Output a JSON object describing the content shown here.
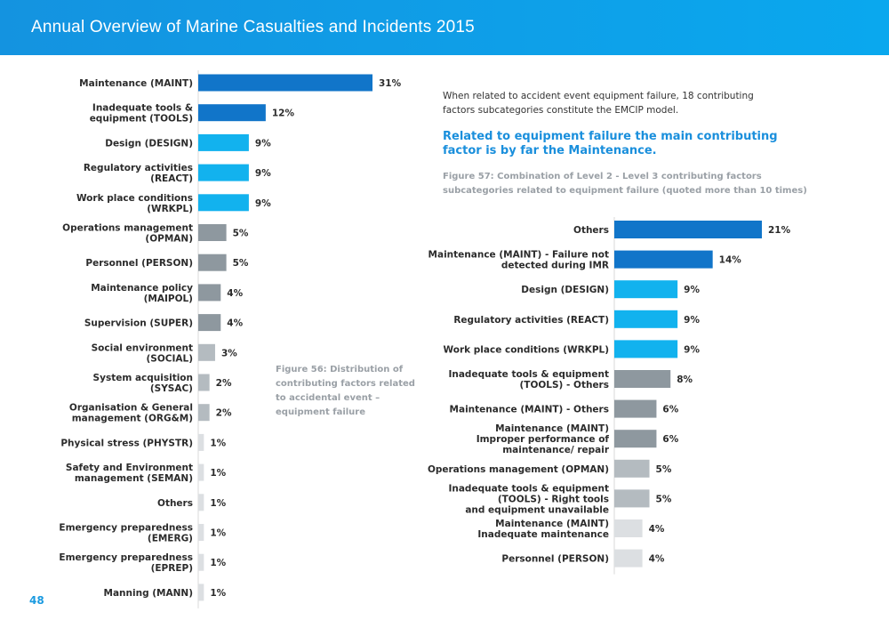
{
  "header": {
    "title": "Annual Overview of Marine Casualties and Incidents 2015"
  },
  "page_number": "48",
  "intro_text": "When related to accident event equipment failure, 18 contributing factors subcategories constitute the EMCIP model.",
  "highlight_text": "Related to equipment failure the main contributing factor is by far the Maintenance.",
  "colors": {
    "dark_blue": "#1175c9",
    "light_blue": "#12b2ee",
    "dark_gray": "#8e989f",
    "mid_gray": "#b4bbc0",
    "light_gray": "#dcdfe2"
  },
  "chart_data": [
    {
      "type": "bar",
      "orientation": "horizontal",
      "title": "Figure 56: Distribution of contributing factors related to accidental event – equipment failure",
      "unit": "%",
      "xlim": [
        0,
        31
      ],
      "categories": [
        [
          "Maintenance (MAINT)"
        ],
        [
          "Inadequate tools &",
          "equipment (TOOLS)"
        ],
        [
          "Design (DESIGN)"
        ],
        [
          "Regulatory activities",
          "(REACT)"
        ],
        [
          "Work place conditions",
          "(WRKPL)"
        ],
        [
          "Operations management",
          "(OPMAN)"
        ],
        [
          "Personnel (PERSON)"
        ],
        [
          "Maintenance policy",
          "(MAIPOL)"
        ],
        [
          "Supervision (SUPER)"
        ],
        [
          "Social environment",
          "(SOCIAL)"
        ],
        [
          "System acquisition",
          "(SYSAC)"
        ],
        [
          "Organisation & General",
          "management (ORG&M)"
        ],
        [
          "Physical stress (PHYSTR)"
        ],
        [
          "Safety and Environment",
          "management (SEMAN)"
        ],
        [
          "Others"
        ],
        [
          "Emergency preparedness",
          "(EMERG)"
        ],
        [
          "Emergency preparedness",
          "(EPREP)"
        ],
        [
          "Manning (MANN)"
        ]
      ],
      "values": [
        31,
        12,
        9,
        9,
        9,
        5,
        5,
        4,
        4,
        3,
        2,
        2,
        1,
        1,
        1,
        1,
        1,
        1
      ],
      "value_labels": [
        "31%",
        "12%",
        "9%",
        "9%",
        "9%",
        "5%",
        "5%",
        "4%",
        "4%",
        "3%",
        "2%",
        "2%",
        "1%",
        "1%",
        "1%",
        "1%",
        "1%",
        "1%"
      ],
      "color_keys": [
        "dark_blue",
        "dark_blue",
        "light_blue",
        "light_blue",
        "light_blue",
        "dark_gray",
        "dark_gray",
        "dark_gray",
        "dark_gray",
        "mid_gray",
        "mid_gray",
        "mid_gray",
        "light_gray",
        "light_gray",
        "light_gray",
        "light_gray",
        "light_gray",
        "light_gray"
      ]
    },
    {
      "type": "bar",
      "orientation": "horizontal",
      "title": "Figure 57: Combination of Level 2 - Level 3 contributing factors subcategories related to equipment failure (quoted more than 10 times)",
      "unit": "%",
      "xlim": [
        0,
        21
      ],
      "categories": [
        [
          "Others"
        ],
        [
          "Maintenance (MAINT)  - Failure not",
          "detected during IMR"
        ],
        [
          "Design (DESIGN)"
        ],
        [
          "Regulatory activities (REACT)"
        ],
        [
          "Work place conditions (WRKPL)"
        ],
        [
          "Inadequate tools & equipment",
          "(TOOLS) - Others"
        ],
        [
          "Maintenance (MAINT) - Others"
        ],
        [
          "Maintenance (MAINT)",
          "Improper performance of",
          "maintenance/ repair"
        ],
        [
          "Operations management (OPMAN)"
        ],
        [
          "Inadequate tools & equipment",
          "(TOOLS) - Right tools",
          "and equipment unavailable"
        ],
        [
          "Maintenance (MAINT)",
          "Inadequate maintenance"
        ],
        [
          "Personnel (PERSON)"
        ]
      ],
      "values": [
        21,
        14,
        9,
        9,
        9,
        8,
        6,
        6,
        5,
        5,
        4,
        4
      ],
      "value_labels": [
        "21%",
        "14%",
        "9%",
        "9%",
        "9%",
        "8%",
        "6%",
        "6%",
        "5%",
        "5%",
        "4%",
        "4%"
      ],
      "color_keys": [
        "dark_blue",
        "dark_blue",
        "light_blue",
        "light_blue",
        "light_blue",
        "dark_gray",
        "dark_gray",
        "dark_gray",
        "mid_gray",
        "mid_gray",
        "light_gray",
        "light_gray"
      ]
    }
  ]
}
